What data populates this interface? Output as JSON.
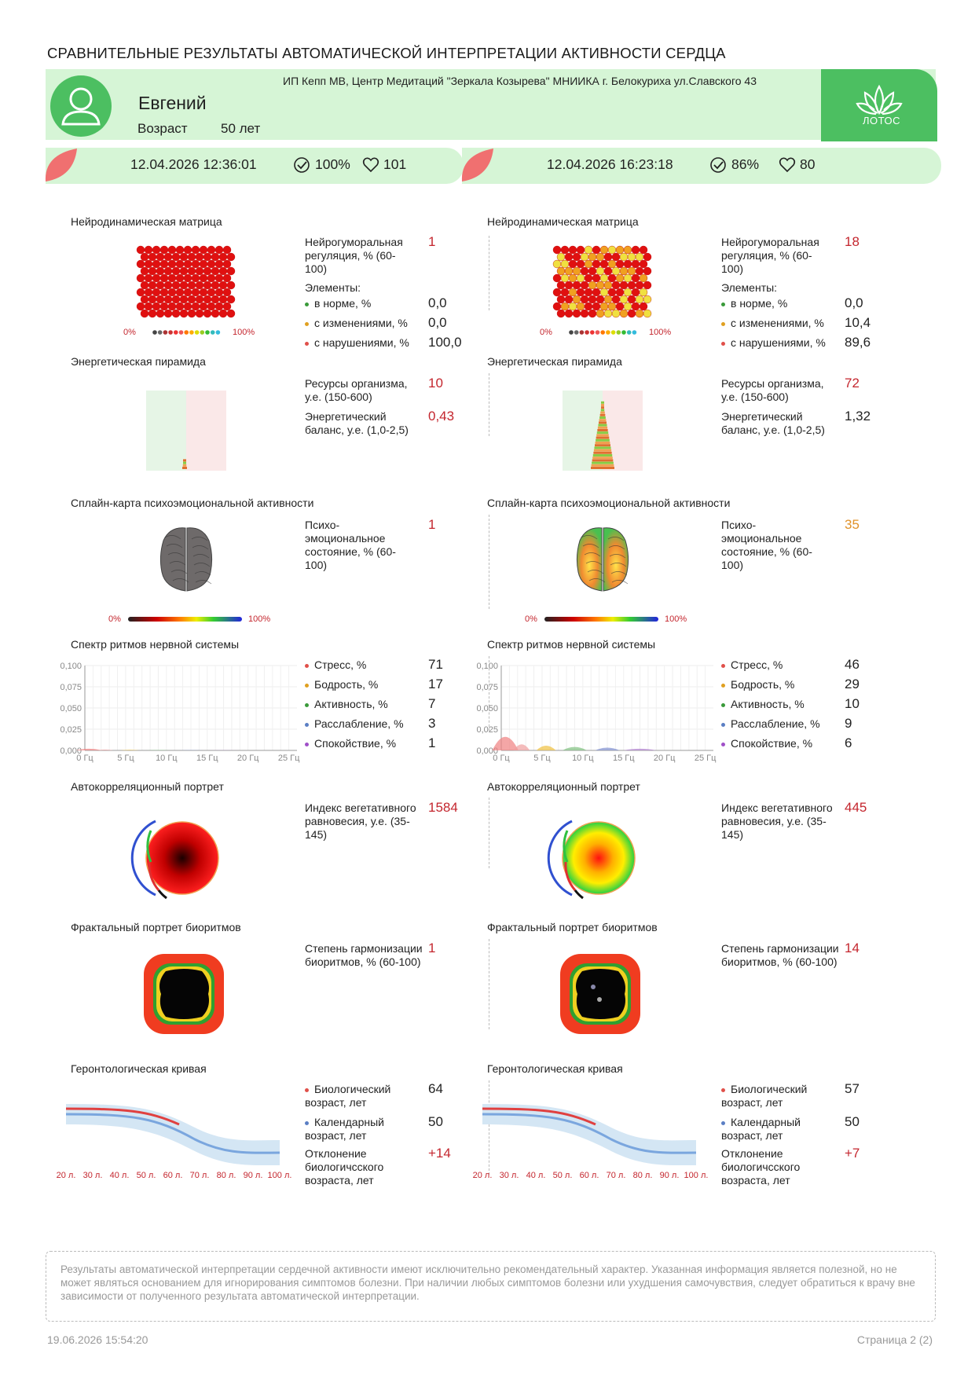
{
  "title": "СРАВНИТЕЛЬНЫЕ РЕЗУЛЬТАТЫ АВТОМАТИЧЕСКОЙ ИНТЕРПРЕТАЦИИ АКТИВНОСТИ СЕРДЦА",
  "patient": {
    "name": "Евгений",
    "age_label": "Возраст",
    "age_value": "50 лет"
  },
  "organization": "ИП Кепп МВ, Центр Медитаций \"Зеркала Козырева\" МНИИКА г. Белокуриха ул.Славского 43",
  "logo_text": "ЛОТОС",
  "colors": {
    "green": "#4cbf61",
    "light_green": "#d6f5d6",
    "red": "#c4262e",
    "orange": "#e0922a"
  },
  "sessions": [
    {
      "datetime": "12.04.2026 12:36:01",
      "quality": "100%",
      "pulse": "101",
      "neuro": {
        "title": "Нейродинамическая матрица",
        "metric_label": "Нейрогуморальная регуляция, % (60-100)",
        "metric_value": "1",
        "elements_label": "Элементы:",
        "items": [
          {
            "label": "в норме, %",
            "value": "0,0",
            "color": "#3a9a3a"
          },
          {
            "label": "с изменениями, %",
            "value": "0,0",
            "color": "#e0a020"
          },
          {
            "label": "с нарушениями, %",
            "value": "100,0",
            "color": "#e0504a"
          }
        ],
        "matrix_mix": {
          "red": 1.0,
          "orange": 0.0,
          "yellow": 0.0
        },
        "legend_min": "0%",
        "legend_max": "100%"
      },
      "energy": {
        "title": "Энергетическая пирамида",
        "resources_label": "Ресурсы организма, у.е. (150-600)",
        "resources_value": "10",
        "balance_label": "Энергетический баланс, у.е. (1,0-2,5)",
        "balance_value": "0,43",
        "balance_highlight": true,
        "pyramid_level": 0.1
      },
      "spline": {
        "title": "Сплайн-карта психоэмоциональной активности",
        "metric_label": "Психо-эмоциональное состояние, % (60-100)",
        "metric_value": "1",
        "brain": "grey",
        "legend_min": "0%",
        "legend_max": "100%"
      },
      "spectrum": {
        "title": "Спектр ритмов нервной системы",
        "items": [
          {
            "label": "Стресс, %",
            "value": "71",
            "color": "#e0504a"
          },
          {
            "label": "Бодрость, %",
            "value": "17",
            "color": "#e0a020"
          },
          {
            "label": "Активность, %",
            "value": "7",
            "color": "#3a9a3a"
          },
          {
            "label": "Расслабление, %",
            "value": "3",
            "color": "#5b7fc4"
          },
          {
            "label": "Спокойствие, %",
            "value": "1",
            "color": "#a050c8"
          }
        ],
        "yticks": [
          "0,100",
          "0,075",
          "0,050",
          "0,025",
          "0,000"
        ],
        "xticks": [
          "0 Гц",
          "5 Гц",
          "10 Гц",
          "15 Гц",
          "20 Гц",
          "25 Гц"
        ],
        "peak": 0.002
      },
      "autocorr": {
        "title": "Автокорреляционный портрет",
        "metric_label": "Индекс вегетативного равновесия, у.е. (35-145)",
        "metric_value": "1584",
        "mode": "red"
      },
      "fractal": {
        "title": "Фрактальный портрет биоритмов",
        "metric_label": "Степень гармонизации биоритмов, % (60-100)",
        "metric_value": "1"
      },
      "geront": {
        "title": "Геронтологическая кривая",
        "bio_label": "Биологический возраст, лет",
        "bio_value": "64",
        "cal_label": "Календарный возраст, лет",
        "cal_value": "50",
        "dev_label": "Отклонение биологичсского возраста, лет",
        "dev_value": "+14",
        "xticks": [
          "20 л.",
          "30 л.",
          "40 л.",
          "50 л.",
          "60 л.",
          "70 л.",
          "80 л.",
          "90 л.",
          "100 л."
        ]
      }
    },
    {
      "datetime": "12.04.2026 16:23:18",
      "quality": "86%",
      "pulse": "80",
      "neuro": {
        "title": "Нейродинамическая матрица",
        "metric_label": "Нейрогуморальная регуляция, % (60-100)",
        "metric_value": "18",
        "elements_label": "Элементы:",
        "items": [
          {
            "label": "в норме, %",
            "value": "0,0",
            "color": "#3a9a3a"
          },
          {
            "label": "с изменениями, %",
            "value": "10,4",
            "color": "#e0a020"
          },
          {
            "label": "с нарушениями, %",
            "value": "89,6",
            "color": "#e0504a"
          }
        ],
        "matrix_mix": {
          "red": 0.55,
          "orange": 0.3,
          "yellow": 0.15
        },
        "legend_min": "0%",
        "legend_max": "100%"
      },
      "energy": {
        "title": "Энергетическая пирамида",
        "resources_label": "Ресурсы организма, у.е. (150-600)",
        "resources_value": "72",
        "balance_label": "Энергетический баланс, у.е. (1,0-2,5)",
        "balance_value": "1,32",
        "balance_highlight": false,
        "pyramid_level": 0.9
      },
      "spline": {
        "title": "Сплайн-карта психоэмоциональной активности",
        "metric_label": "Психо-эмоциональное состояние, % (60-100)",
        "metric_value": "35",
        "brain": "color",
        "legend_min": "0%",
        "legend_max": "100%"
      },
      "spectrum": {
        "title": "Спектр ритмов нервной системы",
        "items": [
          {
            "label": "Стресс, %",
            "value": "46",
            "color": "#e0504a"
          },
          {
            "label": "Бодрость, %",
            "value": "29",
            "color": "#e0a020"
          },
          {
            "label": "Активность, %",
            "value": "10",
            "color": "#3a9a3a"
          },
          {
            "label": "Расслабление, %",
            "value": "9",
            "color": "#5b7fc4"
          },
          {
            "label": "Спокойствие, %",
            "value": "6",
            "color": "#a050c8"
          }
        ],
        "yticks": [
          "0,100",
          "0,075",
          "0,050",
          "0,025",
          "0,000"
        ],
        "xticks": [
          "0 Гц",
          "5 Гц",
          "10 Гц",
          "15 Гц",
          "20 Гц",
          "25 Гц"
        ],
        "peak": 0.016
      },
      "autocorr": {
        "title": "Автокорреляционный портрет",
        "metric_label": "Индекс вегетативного равновесия, у.е. (35-145)",
        "metric_value": "445",
        "mode": "green"
      },
      "fractal": {
        "title": "Фрактальный портрет биоритмов",
        "metric_label": "Степень гармонизации биоритмов, % (60-100)",
        "metric_value": "14"
      },
      "geront": {
        "title": "Геронтологическая кривая",
        "bio_label": "Биологический возраст, лет",
        "bio_value": "57",
        "cal_label": "Календарный возраст, лет",
        "cal_value": "50",
        "dev_label": "Отклонение биологичсского возраста, лет",
        "dev_value": "+7",
        "xticks": [
          "20 л.",
          "30 л.",
          "40 л.",
          "50 л.",
          "60 л.",
          "70 л.",
          "80 л.",
          "90 л.",
          "100 л."
        ]
      }
    }
  ],
  "disclaimer": "Результаты автоматической интерпретации сердечной активности имеют исключительно рекомендательный характер. Указанная информация является полезной, но не может являться основанием для игнорирования симптомов болезни. При наличии любых симптомов болезни или ухудшения самочувствия, следует обратиться к врачу вне зависимости от полученного результата автоматической интерпретации.",
  "footer": {
    "date": "19.06.2026 15:54:20",
    "page": "Страница 2 (2)"
  }
}
